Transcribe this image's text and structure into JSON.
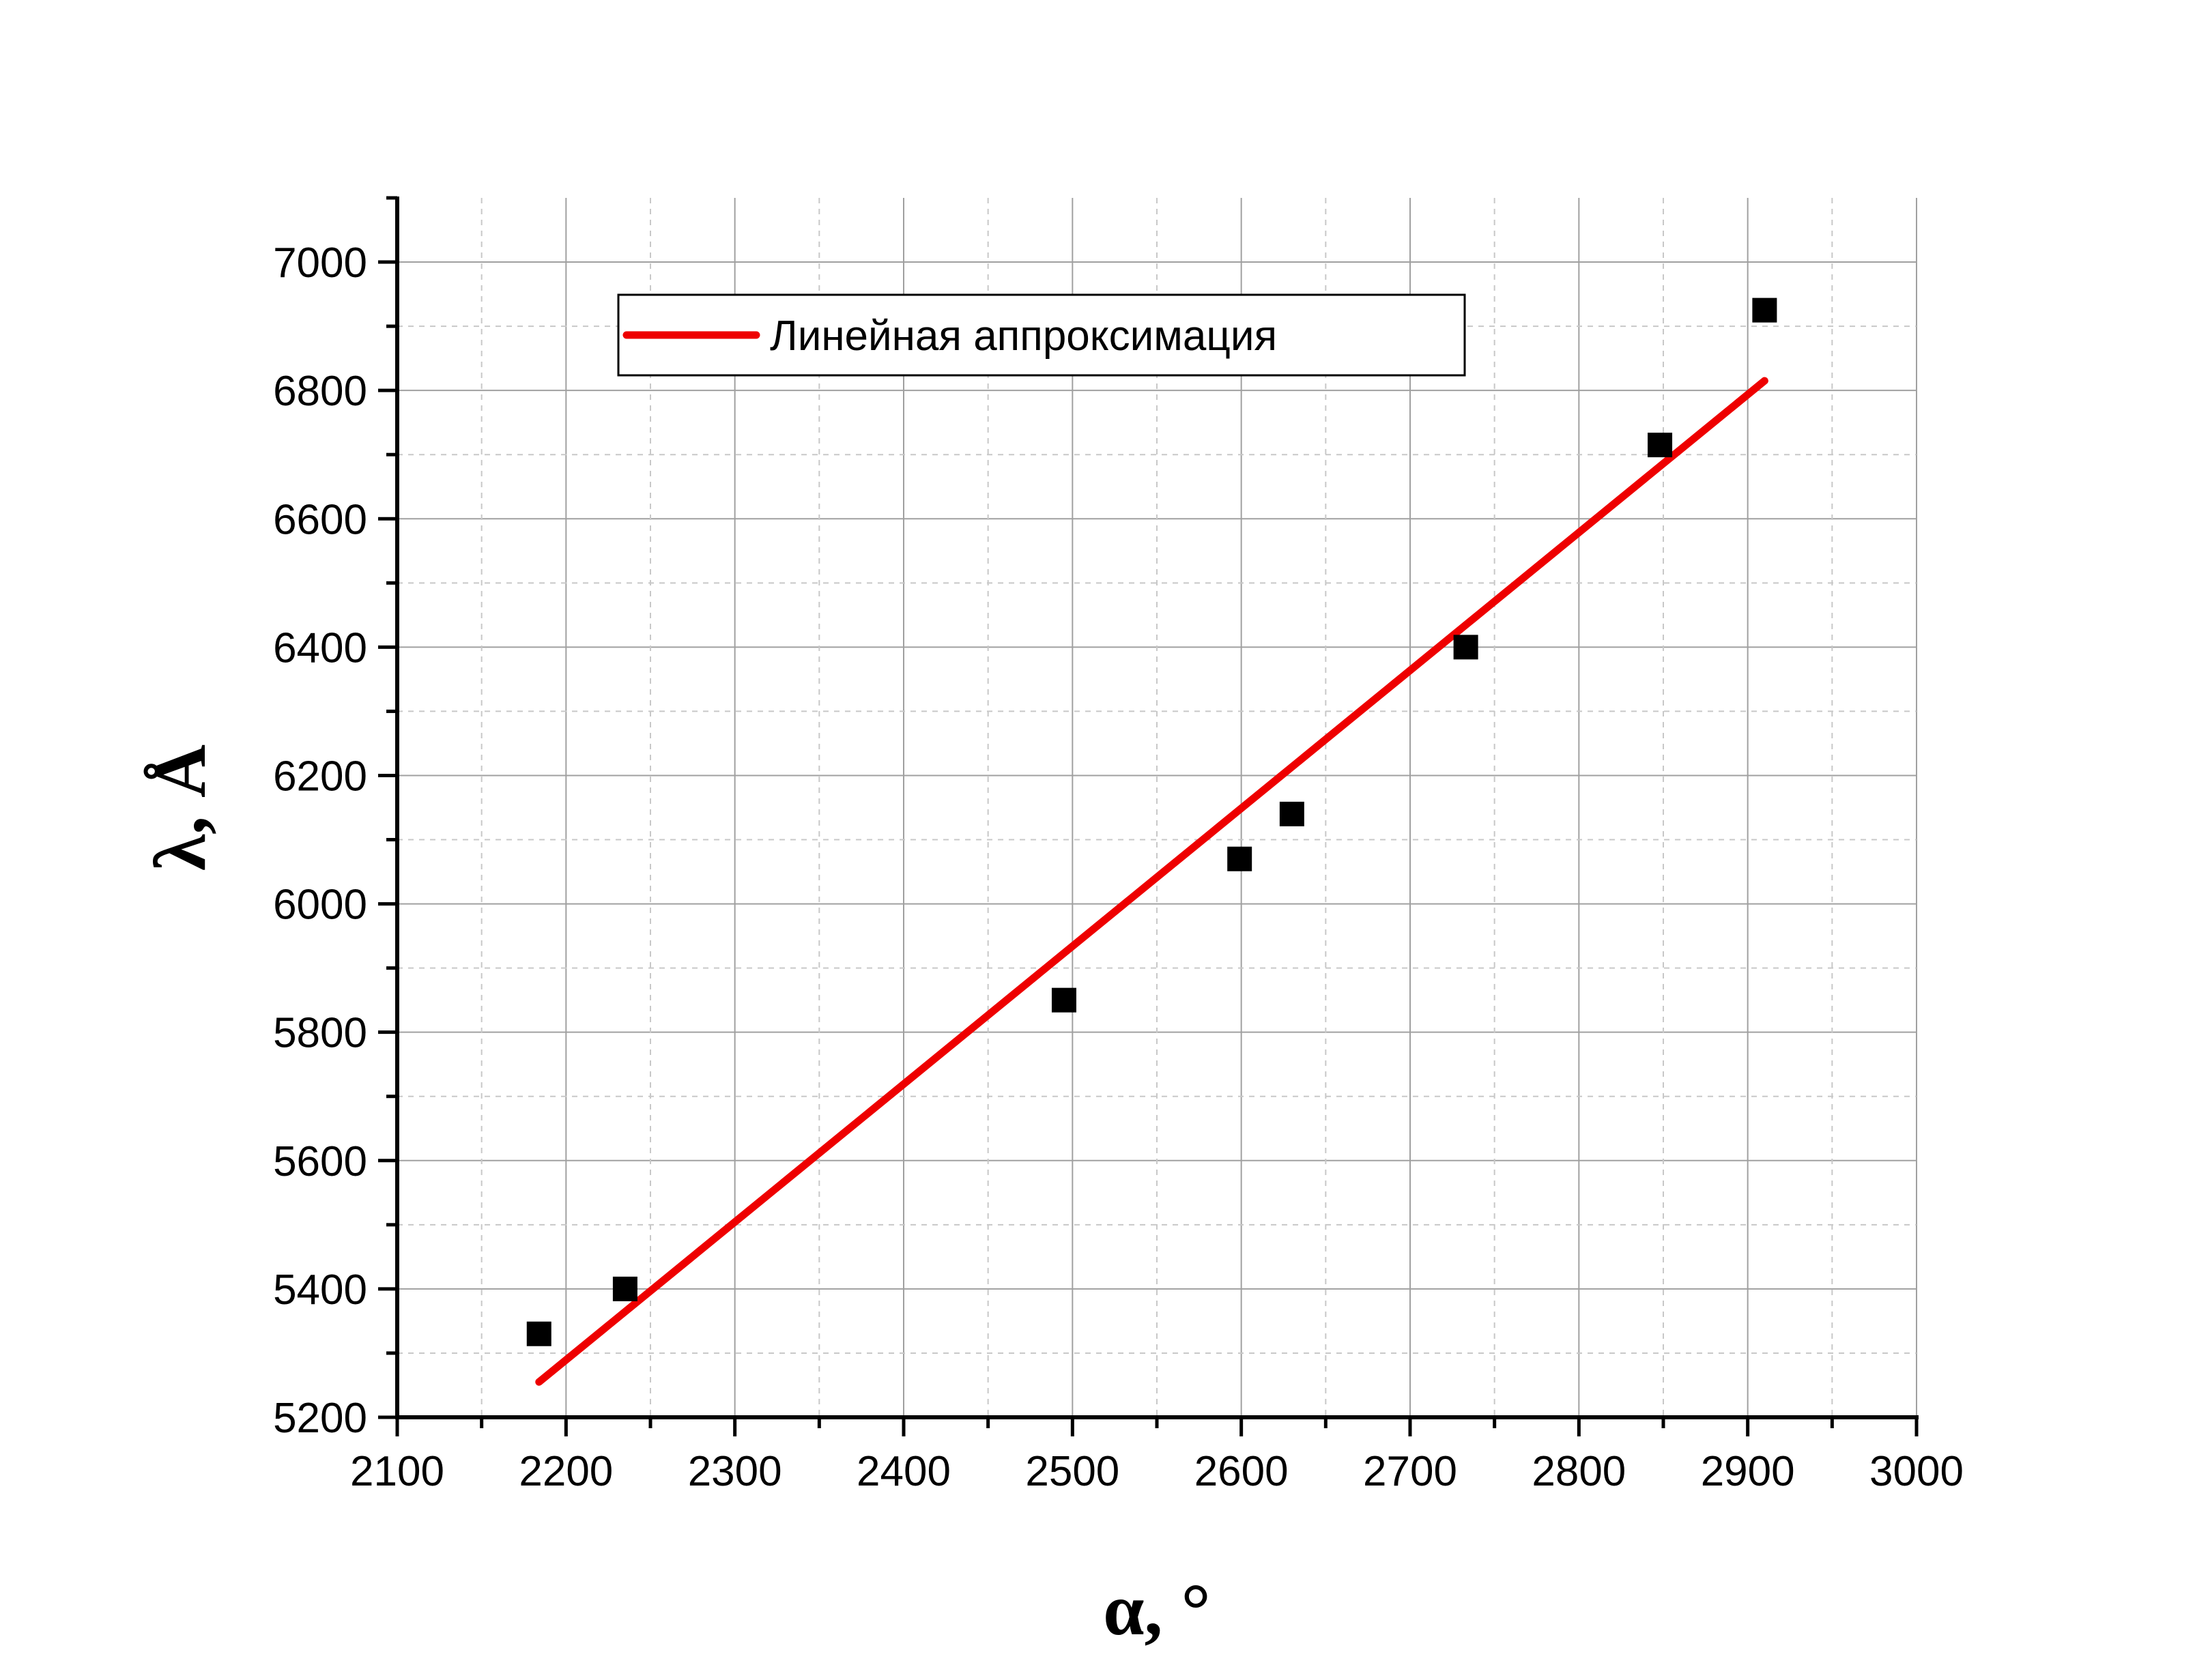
{
  "chart_data": {
    "type": "scatter",
    "title": "",
    "xlabel": "α, °",
    "ylabel": "λ, Å",
    "xlim": [
      2100,
      3000
    ],
    "ylim": [
      5200,
      7100
    ],
    "x_ticks": [
      2100,
      2200,
      2300,
      2400,
      2500,
      2600,
      2700,
      2800,
      2900,
      3000
    ],
    "y_ticks": [
      5200,
      5400,
      5600,
      5800,
      6000,
      6200,
      6400,
      6600,
      6800,
      7000
    ],
    "x_tick_labels": [
      "2100",
      "2200",
      "2300",
      "2400",
      "2500",
      "2600",
      "2700",
      "2800",
      "2900",
      "3000"
    ],
    "y_tick_labels": [
      "5200",
      "5400",
      "5600",
      "5800",
      "6000",
      "6200",
      "6400",
      "6600",
      "6800",
      "7000"
    ],
    "grid": true,
    "legend_position": "top-left",
    "series": [
      {
        "type": "scatter",
        "marker": "square",
        "color": "#000000",
        "x": [
          2184,
          2235,
          2495,
          2599,
          2630,
          2733,
          2848,
          2910
        ],
        "y": [
          5330,
          5400,
          5850,
          6070,
          6140,
          6400,
          6715,
          6925
        ]
      },
      {
        "type": "line",
        "name": "Линейная аппроксимация",
        "color": "#ee0000",
        "x": [
          2184,
          2910
        ],
        "y": [
          5255,
          6815
        ]
      }
    ]
  }
}
